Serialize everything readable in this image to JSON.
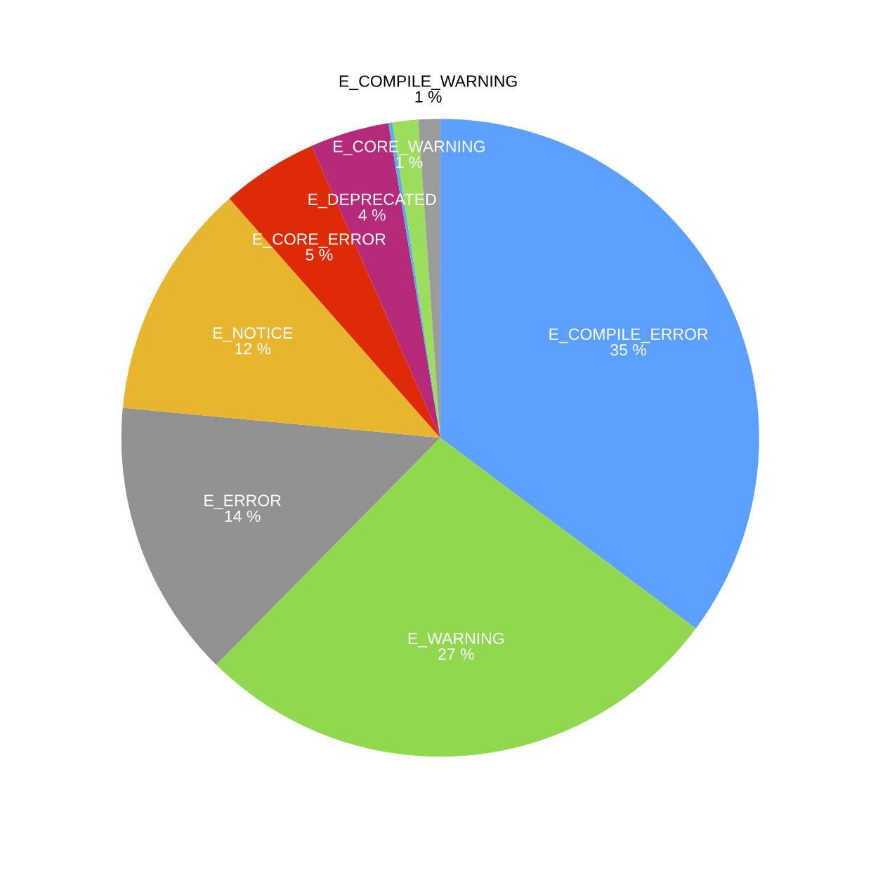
{
  "chart_data": {
    "type": "pie",
    "categories": [
      "E_COMPILE_ERROR",
      "E_WARNING",
      "E_ERROR",
      "E_NOTICE",
      "E_CORE_ERROR",
      "E_DEPRECATED",
      null,
      "E_CORE_WARNING",
      "E_COMPILE_WARNING"
    ],
    "values": [
      35.2,
      27.2,
      14.1,
      12.0,
      4.9,
      4.0,
      0.2,
      1.3,
      1.1
    ],
    "colors": [
      "#5ba0ff",
      "#90d84d",
      "#919191",
      "#e8b52e",
      "#dc2b06",
      "#b62b79",
      "#56aef0",
      "#9ddd5c",
      "#9b9b9b"
    ],
    "value_labels": [
      "35 %",
      "27 %",
      "14 %",
      "12 %",
      "5 %",
      "4 %",
      null,
      "1 %",
      "1 %"
    ]
  }
}
